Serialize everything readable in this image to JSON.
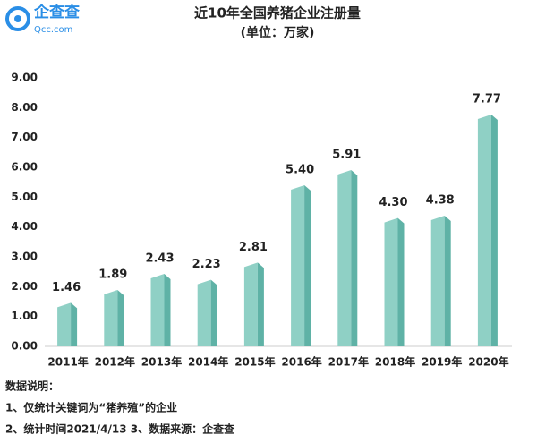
{
  "logo": {
    "name": "企查查",
    "domain": "Qcc.com"
  },
  "chart_data": {
    "type": "bar",
    "title": "近10年全国养猪企业注册量",
    "subtitle": "(单位：万家)",
    "categories": [
      "2011年",
      "2012年",
      "2013年",
      "2014年",
      "2015年",
      "2016年",
      "2017年",
      "2018年",
      "2019年",
      "2020年"
    ],
    "values": [
      1.46,
      1.89,
      2.43,
      2.23,
      2.81,
      5.4,
      5.91,
      4.3,
      4.38,
      7.77
    ],
    "value_labels": [
      "1.46",
      "1.89",
      "2.43",
      "2.23",
      "2.81",
      "5.40",
      "5.91",
      "4.30",
      "4.38",
      "7.77"
    ],
    "color": "#8fd0c5",
    "ylim": [
      0,
      9
    ],
    "yticks": [
      {
        "value": 0,
        "label": "0.00"
      },
      {
        "value": 1,
        "label": "1.00"
      },
      {
        "value": 2,
        "label": "2.00"
      },
      {
        "value": 3,
        "label": "3.00"
      },
      {
        "value": 4,
        "label": "4.00"
      },
      {
        "value": 5,
        "label": "5.00"
      },
      {
        "value": 6,
        "label": "6.00"
      },
      {
        "value": 7,
        "label": "7.00"
      },
      {
        "value": 8,
        "label": "8.00"
      },
      {
        "value": 9,
        "label": "9.00"
      }
    ],
    "grid": false
  },
  "notes": [
    "数据说明：",
    "1、仅统计关键词为“猪养殖”的企业",
    "2、统计时间2021/4/13   3、数据来源：企查查"
  ]
}
